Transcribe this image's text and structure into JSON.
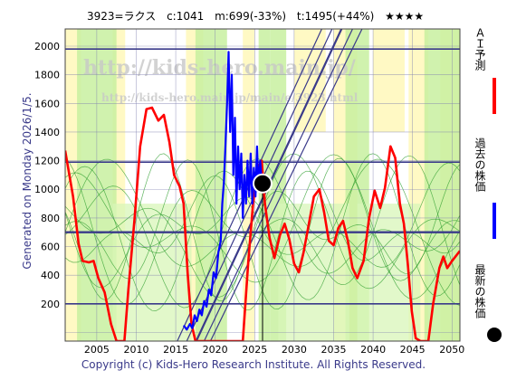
{
  "header": {
    "code_name": "3923=ラクス",
    "current": "c:1041",
    "mid": "m:699(-33%)",
    "target": "t:1495(+44%)",
    "stars": "★★★★"
  },
  "side_label": "Generated on Monday 2026/1/5.",
  "footer": "Copyright (c) Kids-Hero Research Institute. All Rights Reserved.",
  "watermark": {
    "url1": "http://kids-hero.main.jp/",
    "url2": "http://kids-hero.main.jp/main/e/3923.html"
  },
  "legend": [
    {
      "label": "ＡＩ予測",
      "color": "#ff0000",
      "kind": "line"
    },
    {
      "label": "過去の株価",
      "color": "#0000ff",
      "kind": "line"
    },
    {
      "label": "最新の株価",
      "color": "#000000",
      "kind": "dot"
    }
  ],
  "chart_data": {
    "type": "line",
    "x_ticks": [
      2005,
      2010,
      2015,
      2020,
      2025,
      2030,
      2035,
      2040,
      2045,
      2050
    ],
    "y_ticks": [
      0,
      200,
      400,
      600,
      800,
      1000,
      1200,
      1400,
      1600,
      1800,
      2000
    ],
    "xlim": [
      2001,
      2051
    ],
    "ylim": [
      -60,
      2120
    ],
    "grid": true,
    "horizontal_levels": [
      1980,
      1190,
      700,
      200
    ],
    "latest_point": {
      "x": 2026.0,
      "y": 1041
    },
    "series": [
      {
        "name": "ＡＩ予測",
        "color": "#ff0000",
        "points": [
          [
            2001,
            1270
          ],
          [
            2002,
            950
          ],
          [
            2002.7,
            620
          ],
          [
            2003.2,
            500
          ],
          [
            2004,
            490
          ],
          [
            2004.6,
            500
          ],
          [
            2005.2,
            380
          ],
          [
            2006,
            280
          ],
          [
            2006.8,
            60
          ],
          [
            2007.5,
            -60
          ],
          [
            2008.5,
            -60
          ],
          [
            2009,
            300
          ],
          [
            2009.8,
            800
          ],
          [
            2010.5,
            1300
          ],
          [
            2011.3,
            1560
          ],
          [
            2012,
            1570
          ],
          [
            2012.8,
            1480
          ],
          [
            2013.5,
            1520
          ],
          [
            2014.2,
            1330
          ],
          [
            2014.8,
            1100
          ],
          [
            2015.5,
            1020
          ],
          [
            2016,
            900
          ],
          [
            2016.5,
            420
          ],
          [
            2017,
            60
          ],
          [
            2017.5,
            -60
          ],
          [
            2023.5,
            -60
          ],
          [
            2024.2,
            500
          ],
          [
            2024.8,
            900
          ],
          [
            2025.4,
            1150
          ],
          [
            2025.9,
            1200
          ],
          [
            2026.3,
            900
          ],
          [
            2026.9,
            660
          ],
          [
            2027.5,
            520
          ],
          [
            2028.2,
            680
          ],
          [
            2028.8,
            760
          ],
          [
            2029.4,
            650
          ],
          [
            2030,
            480
          ],
          [
            2030.6,
            420
          ],
          [
            2031.2,
            560
          ],
          [
            2031.8,
            740
          ],
          [
            2032.5,
            950
          ],
          [
            2033.2,
            1000
          ],
          [
            2033.8,
            840
          ],
          [
            2034.4,
            640
          ],
          [
            2035,
            610
          ],
          [
            2035.6,
            730
          ],
          [
            2036.2,
            780
          ],
          [
            2036.8,
            640
          ],
          [
            2037.4,
            450
          ],
          [
            2038,
            380
          ],
          [
            2038.8,
            500
          ],
          [
            2039.5,
            800
          ],
          [
            2040.2,
            990
          ],
          [
            2040.9,
            870
          ],
          [
            2041.5,
            1010
          ],
          [
            2042.2,
            1300
          ],
          [
            2042.8,
            1220
          ],
          [
            2043.4,
            900
          ],
          [
            2043.9,
            760
          ],
          [
            2044.4,
            480
          ],
          [
            2044.9,
            150
          ],
          [
            2045.4,
            -40
          ],
          [
            2046,
            -60
          ],
          [
            2047,
            -60
          ],
          [
            2047.6,
            200
          ],
          [
            2048.4,
            450
          ],
          [
            2048.9,
            530
          ],
          [
            2049.4,
            450
          ],
          [
            2050,
            500
          ],
          [
            2051,
            570
          ]
        ]
      },
      {
        "name": "過去の株価",
        "color": "#0000ff",
        "points": [
          [
            2016.0,
            50
          ],
          [
            2016.4,
            20
          ],
          [
            2016.8,
            60
          ],
          [
            2017.1,
            30
          ],
          [
            2017.4,
            120
          ],
          [
            2017.7,
            80
          ],
          [
            2018.0,
            160
          ],
          [
            2018.3,
            120
          ],
          [
            2018.6,
            220
          ],
          [
            2018.9,
            180
          ],
          [
            2019.2,
            300
          ],
          [
            2019.5,
            260
          ],
          [
            2019.8,
            420
          ],
          [
            2020.1,
            380
          ],
          [
            2020.4,
            560
          ],
          [
            2020.7,
            640
          ],
          [
            2020.9,
            900
          ],
          [
            2021.1,
            1050
          ],
          [
            2021.3,
            1300
          ],
          [
            2021.5,
            1600
          ],
          [
            2021.7,
            1960
          ],
          [
            2021.9,
            1400
          ],
          [
            2022.1,
            1800
          ],
          [
            2022.3,
            1100
          ],
          [
            2022.5,
            1500
          ],
          [
            2022.7,
            900
          ],
          [
            2022.9,
            1300
          ],
          [
            2023.1,
            1000
          ],
          [
            2023.3,
            1250
          ],
          [
            2023.5,
            800
          ],
          [
            2023.7,
            1100
          ],
          [
            2023.9,
            900
          ],
          [
            2024.1,
            1200
          ],
          [
            2024.3,
            950
          ],
          [
            2024.5,
            1250
          ],
          [
            2024.7,
            900
          ],
          [
            2024.9,
            1150
          ],
          [
            2025.1,
            950
          ],
          [
            2025.3,
            1300
          ],
          [
            2025.5,
            1000
          ],
          [
            2025.7,
            1200
          ],
          [
            2025.9,
            1050
          ],
          [
            2026.0,
            1041
          ]
        ]
      }
    ]
  }
}
